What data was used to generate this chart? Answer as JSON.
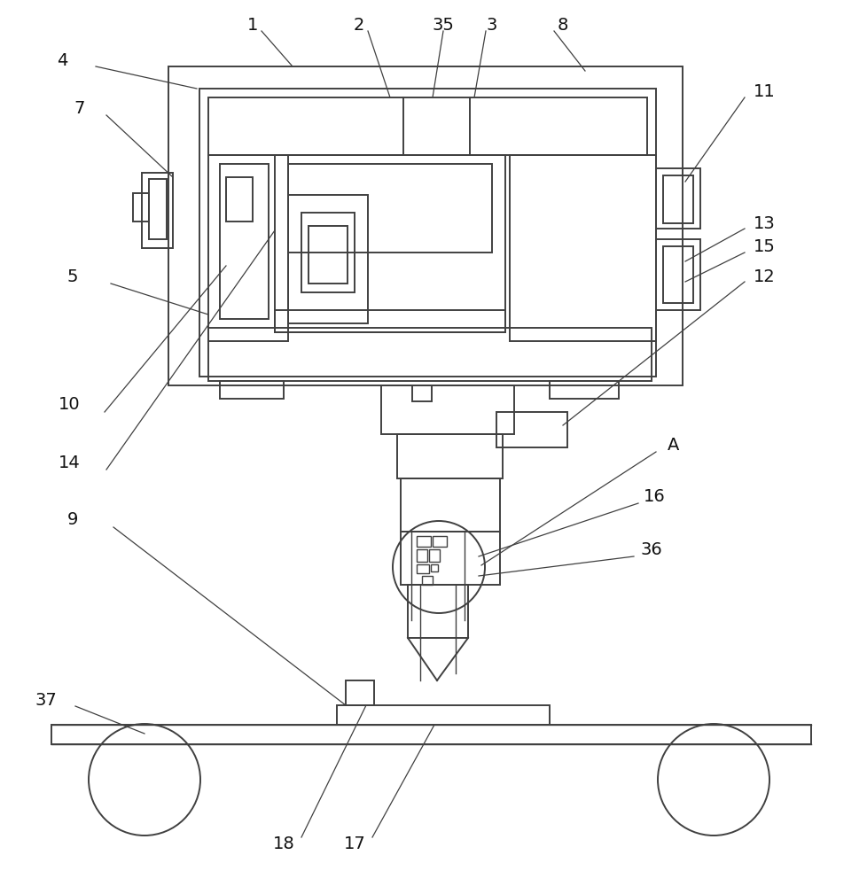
{
  "bg_color": "#ffffff",
  "line_color": "#404040",
  "lw": 1.4,
  "lw_thin": 1.0,
  "font_size": 14
}
